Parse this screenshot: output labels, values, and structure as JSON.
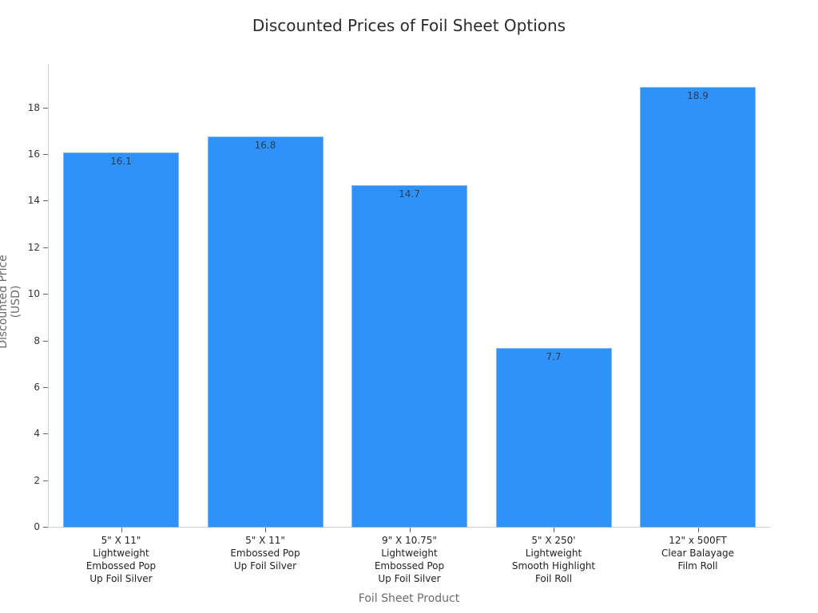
{
  "chart_data": {
    "type": "bar",
    "title": "Discounted Prices of Foil Sheet Options",
    "xlabel": "Foil Sheet Product",
    "ylabel": "Discounted Price (USD)",
    "categories": [
      "5\" X 11\"\nLightweight\nEmbossed Pop\nUp Foil Silver",
      "5\" X 11\"\nEmbossed Pop\nUp Foil Silver",
      "9\" X 10.75\"\nLightweight\nEmbossed Pop\nUp Foil Silver",
      "5\" X 250'\nLightweight\nSmooth Highlight\nFoil Roll",
      "12\" x 500FT\nClear Balayage\nFilm Roll"
    ],
    "values": [
      16.1,
      16.8,
      14.7,
      7.7,
      18.9
    ],
    "data_labels": [
      "16.1",
      "16.8",
      "14.7",
      "7.7",
      "18.9"
    ],
    "yticks": [
      "0",
      "2",
      "4",
      "6",
      "8",
      "10",
      "12",
      "14",
      "16",
      "18"
    ],
    "ylim": [
      0,
      19.9
    ],
    "grid": false,
    "legend": null,
    "bar_color": "#2f92f8"
  }
}
